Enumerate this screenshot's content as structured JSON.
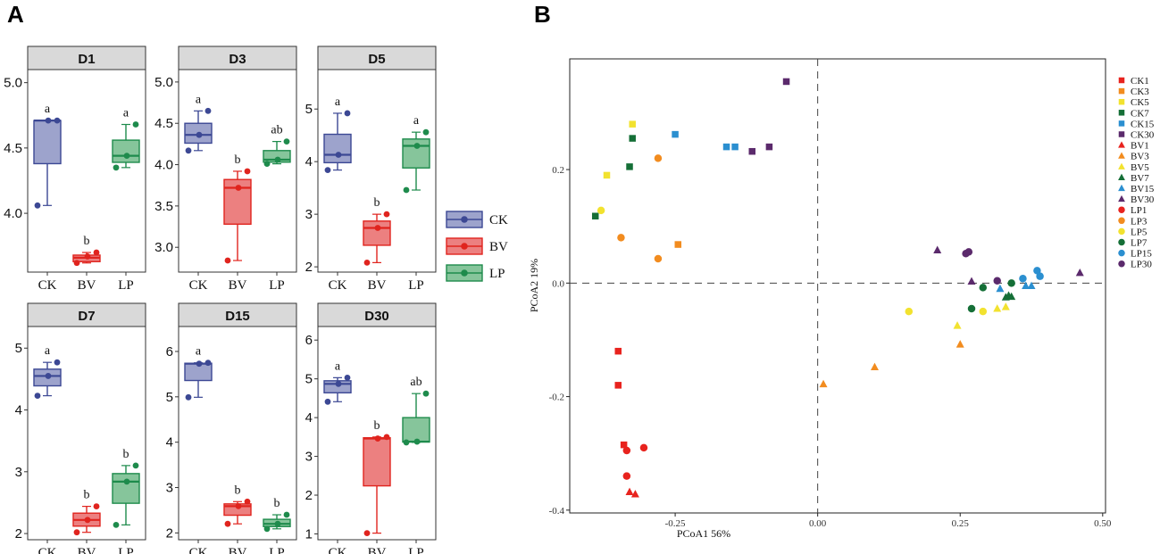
{
  "panel_labels": {
    "a": "A",
    "b": "B"
  },
  "groups": [
    "CK",
    "BV",
    "LP"
  ],
  "group_colors": {
    "CK": {
      "line": "#3c4894",
      "fill": "#9da3cc"
    },
    "BV": {
      "line": "#e0241e",
      "fill": "#ec8080"
    },
    "LP": {
      "line": "#1e8b4c",
      "fill": "#86c59b"
    }
  },
  "legend_a": [
    "CK",
    "BV",
    "LP"
  ],
  "chart_data": [
    {
      "type": "box",
      "title": "D1",
      "ylim": [
        3.55,
        5.1
      ],
      "yticks": [
        "4.0",
        "4.5",
        "5.0"
      ],
      "categories": [
        "CK",
        "BV",
        "LP"
      ],
      "boxes": [
        {
          "group": "CK",
          "min": 4.06,
          "q1": 4.38,
          "median": 4.71,
          "q3": 4.71,
          "max": 4.71,
          "points": [
            4.06,
            4.71,
            4.71
          ],
          "letter": "a"
        },
        {
          "group": "BV",
          "min": 3.62,
          "q1": 3.63,
          "median": 3.66,
          "q3": 3.68,
          "max": 3.7,
          "points": [
            3.62,
            3.67,
            3.7
          ],
          "letter": "b"
        },
        {
          "group": "LP",
          "min": 4.35,
          "q1": 4.39,
          "median": 4.44,
          "q3": 4.56,
          "max": 4.68,
          "points": [
            4.35,
            4.44,
            4.68
          ],
          "letter": "a"
        }
      ]
    },
    {
      "type": "box",
      "title": "D3",
      "ylim": [
        2.7,
        5.15
      ],
      "yticks": [
        "3.0",
        "3.5",
        "4.0",
        "4.5",
        "5.0"
      ],
      "categories": [
        "CK",
        "BV",
        "LP"
      ],
      "boxes": [
        {
          "group": "CK",
          "min": 4.17,
          "q1": 4.26,
          "median": 4.36,
          "q3": 4.5,
          "max": 4.65,
          "points": [
            4.17,
            4.36,
            4.65
          ],
          "letter": "a"
        },
        {
          "group": "BV",
          "min": 2.84,
          "q1": 3.28,
          "median": 3.72,
          "q3": 3.82,
          "max": 3.92,
          "points": [
            2.84,
            3.72,
            3.92
          ],
          "letter": "b"
        },
        {
          "group": "LP",
          "min": 4.01,
          "q1": 4.03,
          "median": 4.06,
          "q3": 4.17,
          "max": 4.28,
          "points": [
            4.01,
            4.06,
            4.28
          ],
          "letter": "ab"
        }
      ]
    },
    {
      "type": "box",
      "title": "D5",
      "ylim": [
        1.9,
        5.75
      ],
      "yticks": [
        "2",
        "3",
        "4",
        "5"
      ],
      "categories": [
        "CK",
        "BV",
        "LP"
      ],
      "boxes": [
        {
          "group": "CK",
          "min": 3.84,
          "q1": 3.98,
          "median": 4.13,
          "q3": 4.52,
          "max": 4.92,
          "points": [
            3.84,
            4.13,
            4.92
          ],
          "letter": "a"
        },
        {
          "group": "BV",
          "min": 2.08,
          "q1": 2.41,
          "median": 2.74,
          "q3": 2.87,
          "max": 3.0,
          "points": [
            2.08,
            2.74,
            3.0
          ],
          "letter": "b"
        },
        {
          "group": "LP",
          "min": 3.46,
          "q1": 3.88,
          "median": 4.3,
          "q3": 4.43,
          "max": 4.56,
          "points": [
            3.46,
            4.3,
            4.56
          ],
          "letter": "a"
        }
      ]
    },
    {
      "type": "box",
      "title": "D7",
      "ylim": [
        1.9,
        5.35
      ],
      "yticks": [
        "2",
        "3",
        "4",
        "5"
      ],
      "categories": [
        "CK",
        "BV",
        "LP"
      ],
      "boxes": [
        {
          "group": "CK",
          "min": 4.23,
          "q1": 4.39,
          "median": 4.55,
          "q3": 4.66,
          "max": 4.77,
          "points": [
            4.23,
            4.55,
            4.77
          ],
          "letter": "a"
        },
        {
          "group": "BV",
          "min": 2.02,
          "q1": 2.12,
          "median": 2.22,
          "q3": 2.33,
          "max": 2.44,
          "points": [
            2.02,
            2.22,
            2.44
          ],
          "letter": "b"
        },
        {
          "group": "LP",
          "min": 2.14,
          "q1": 2.49,
          "median": 2.84,
          "q3": 2.97,
          "max": 3.1,
          "points": [
            2.14,
            2.84,
            3.1
          ],
          "letter": "b"
        }
      ]
    },
    {
      "type": "box",
      "title": "D15",
      "ylim": [
        1.85,
        6.55
      ],
      "yticks": [
        "2",
        "3",
        "4",
        "5",
        "6"
      ],
      "categories": [
        "CK",
        "BV",
        "LP"
      ],
      "boxes": [
        {
          "group": "CK",
          "min": 4.99,
          "q1": 5.36,
          "median": 5.73,
          "q3": 5.74,
          "max": 5.75,
          "points": [
            4.99,
            5.73,
            5.75
          ],
          "letter": "a"
        },
        {
          "group": "BV",
          "min": 2.2,
          "q1": 2.39,
          "median": 2.59,
          "q3": 2.64,
          "max": 2.69,
          "points": [
            2.2,
            2.59,
            2.69
          ],
          "letter": "b"
        },
        {
          "group": "LP",
          "min": 2.09,
          "q1": 2.14,
          "median": 2.2,
          "q3": 2.3,
          "max": 2.4,
          "points": [
            2.09,
            2.2,
            2.4
          ],
          "letter": "b"
        }
      ]
    },
    {
      "type": "box",
      "title": "D30",
      "ylim": [
        0.85,
        6.35
      ],
      "yticks": [
        "1",
        "2",
        "3",
        "4",
        "5",
        "6"
      ],
      "categories": [
        "CK",
        "BV",
        "LP"
      ],
      "boxes": [
        {
          "group": "CK",
          "min": 4.41,
          "q1": 4.64,
          "median": 4.87,
          "q3": 4.95,
          "max": 5.03,
          "points": [
            4.41,
            4.87,
            5.03
          ],
          "letter": "a"
        },
        {
          "group": "BV",
          "min": 1.02,
          "q1": 2.24,
          "median": 3.46,
          "q3": 3.48,
          "max": 3.5,
          "points": [
            1.02,
            3.46,
            3.5
          ],
          "letter": "b"
        },
        {
          "group": "LP",
          "min": 3.36,
          "q1": 3.37,
          "median": 3.38,
          "q3": 4.0,
          "max": 4.62,
          "points": [
            3.36,
            3.38,
            4.62
          ],
          "letter": "ab"
        }
      ]
    },
    {
      "type": "scatter",
      "title": "",
      "xlabel": "PCoA1 56%",
      "ylabel": "PCoA2 19%",
      "xlim": [
        -0.435,
        0.505
      ],
      "ylim": [
        -0.405,
        0.395
      ],
      "xticks": [
        -0.25,
        0.0,
        0.25,
        0.5
      ],
      "xtick_labels": [
        "-0.25",
        "0.00",
        "0.25",
        "0.50"
      ],
      "yticks": [
        -0.4,
        -0.2,
        0.0,
        0.2
      ],
      "ytick_labels": [
        "-0.4",
        "-0.2",
        "0.0",
        "0.2"
      ],
      "reference_lines": {
        "x": 0,
        "y": 0
      },
      "series": [
        {
          "name": "CK1",
          "color": "#e8231e",
          "shape": "square",
          "points": [
            [
              -0.35,
              -0.12
            ],
            [
              -0.35,
              -0.18
            ],
            [
              -0.34,
              -0.285
            ]
          ]
        },
        {
          "name": "CK3",
          "color": "#f28c1f",
          "shape": "square",
          "points": [
            [
              -0.245,
              0.068
            ]
          ]
        },
        {
          "name": "CK5",
          "color": "#f2e22f",
          "shape": "square",
          "points": [
            [
              -0.325,
              0.28
            ],
            [
              -0.37,
              0.19
            ]
          ]
        },
        {
          "name": "CK7",
          "color": "#156f37",
          "shape": "square",
          "points": [
            [
              -0.325,
              0.255
            ],
            [
              -0.33,
              0.205
            ],
            [
              -0.39,
              0.118
            ]
          ]
        },
        {
          "name": "CK15",
          "color": "#2b8fd0",
          "shape": "square",
          "points": [
            [
              -0.25,
              0.262
            ],
            [
              -0.16,
              0.24
            ],
            [
              -0.145,
              0.24
            ]
          ]
        },
        {
          "name": "CK30",
          "color": "#5b2a6c",
          "shape": "square",
          "points": [
            [
              -0.055,
              0.355
            ],
            [
              -0.085,
              0.24
            ],
            [
              -0.115,
              0.232
            ]
          ]
        },
        {
          "name": "BV1",
          "color": "#e8231e",
          "shape": "triangle",
          "points": [
            [
              -0.33,
              -0.368
            ],
            [
              -0.32,
              -0.372
            ]
          ]
        },
        {
          "name": "BV3",
          "color": "#f28c1f",
          "shape": "triangle",
          "points": [
            [
              0.01,
              -0.178
            ],
            [
              0.1,
              -0.148
            ],
            [
              0.25,
              -0.108
            ]
          ]
        },
        {
          "name": "BV5",
          "color": "#f2e22f",
          "shape": "triangle",
          "points": [
            [
              0.245,
              -0.075
            ],
            [
              0.315,
              -0.045
            ],
            [
              0.33,
              -0.042
            ]
          ]
        },
        {
          "name": "BV7",
          "color": "#156f37",
          "shape": "triangle",
          "points": [
            [
              0.33,
              -0.025
            ],
            [
              0.335,
              -0.022
            ],
            [
              0.34,
              -0.024
            ]
          ]
        },
        {
          "name": "BV15",
          "color": "#2b8fd0",
          "shape": "triangle",
          "points": [
            [
              0.32,
              -0.01
            ],
            [
              0.365,
              -0.005
            ],
            [
              0.375,
              -0.005
            ]
          ]
        },
        {
          "name": "BV30",
          "color": "#5b2a6c",
          "shape": "triangle",
          "points": [
            [
              0.21,
              0.058
            ],
            [
              0.27,
              0.003
            ],
            [
              0.46,
              0.018
            ]
          ]
        },
        {
          "name": "LP1",
          "color": "#e8231e",
          "shape": "circle",
          "points": [
            [
              -0.335,
              -0.295
            ],
            [
              -0.305,
              -0.29
            ],
            [
              -0.335,
              -0.34
            ]
          ]
        },
        {
          "name": "LP3",
          "color": "#f28c1f",
          "shape": "circle",
          "points": [
            [
              -0.28,
              0.22
            ],
            [
              -0.345,
              0.08
            ],
            [
              -0.28,
              0.043
            ]
          ]
        },
        {
          "name": "LP5",
          "color": "#f2e22f",
          "shape": "circle",
          "points": [
            [
              -0.38,
              0.128
            ],
            [
              0.16,
              -0.05
            ],
            [
              0.29,
              -0.05
            ]
          ]
        },
        {
          "name": "LP7",
          "color": "#156f37",
          "shape": "circle",
          "points": [
            [
              0.27,
              -0.045
            ],
            [
              0.29,
              -0.008
            ],
            [
              0.34,
              0.0
            ]
          ]
        },
        {
          "name": "LP15",
          "color": "#2b8fd0",
          "shape": "circle",
          "points": [
            [
              0.36,
              0.008
            ],
            [
              0.385,
              0.022
            ],
            [
              0.39,
              0.012
            ]
          ]
        },
        {
          "name": "LP30",
          "color": "#5b2a6c",
          "shape": "circle",
          "points": [
            [
              0.26,
              0.052
            ],
            [
              0.265,
              0.055
            ],
            [
              0.315,
              0.004
            ]
          ]
        }
      ]
    }
  ]
}
